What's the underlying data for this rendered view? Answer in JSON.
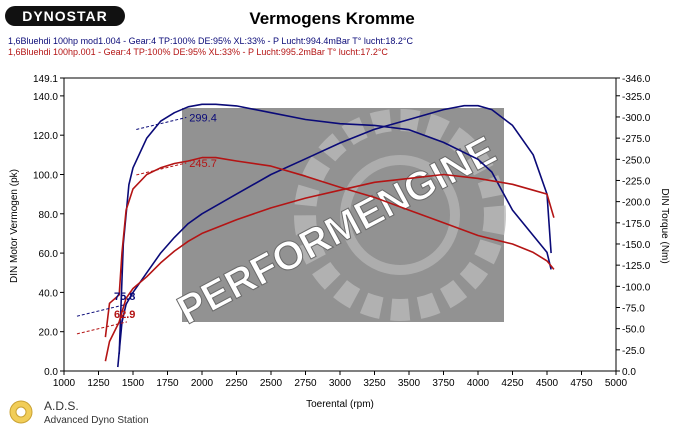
{
  "header": {
    "logo_text": "DYNOSTAR",
    "title": "Vermogens Kromme",
    "run_lines": [
      {
        "text": "1,6Bluehdi 100hp mod1.004 - Gear:4 TP:100% DE:95% XL:33%   - P Lucht:994.4mBar T° lucht:18.2°C",
        "color": "#0a0a78"
      },
      {
        "text": "1,6Bluehdi 100hp.001 - Gear:4 TP:100% DE:95% XL:33%   - P Lucht:995.2mBar T° lucht:17.2°C",
        "color": "#b41414"
      }
    ]
  },
  "footer": {
    "brand": "A.D.S.",
    "subtitle": "Advanced Dyno Station"
  },
  "watermark": {
    "text": "PERFORMENGINE"
  },
  "chart_data": {
    "type": "line",
    "title": "Vermogens Kromme",
    "xlabel": "Toerental (rpm)",
    "ylabel_left": "DIN Motor Vermogen (pk)",
    "ylabel_right": "DIN Torque (Nm)",
    "xlim": [
      1000,
      5000
    ],
    "ylim_left": [
      0,
      149.1
    ],
    "ylim_right": [
      0,
      -346
    ],
    "x_ticks": [
      "1000",
      "1250",
      "1500",
      "1750",
      "2000",
      "2250",
      "2500",
      "2750",
      "3000",
      "3250",
      "3500",
      "3750",
      "4000",
      "4250",
      "4500",
      "4750",
      "5000"
    ],
    "y_left_ticks": [
      "0.0",
      "20.0",
      "40.0",
      "60.0",
      "80.0",
      "100.0",
      "120.0",
      "140.0",
      "149.1"
    ],
    "y_right_ticks": [
      "0.0",
      "-25.0",
      "-50.0",
      "-75.0",
      "-100.0",
      "-125.0",
      "-150.0",
      "-175.0",
      "-200.0",
      "-225.0",
      "-250.0",
      "-275.0",
      "-300.0",
      "-325.0",
      "-346.0"
    ],
    "grid": false,
    "series": [
      {
        "name": "1,6Bluehdi 100hp mod1.004",
        "measure": "power",
        "axis": "left",
        "color": "#0a0a78",
        "x": [
          1390,
          1420,
          1450,
          1500,
          1600,
          1700,
          1800,
          1900,
          2000,
          2250,
          2500,
          2750,
          3000,
          3250,
          3500,
          3750,
          3900,
          4000,
          4100,
          4250,
          4400,
          4500,
          4530
        ],
        "y": [
          2,
          25,
          34,
          40,
          50,
          60,
          68,
          75,
          80,
          90,
          100,
          108,
          116,
          123,
          128,
          133,
          135,
          135,
          133,
          125,
          110,
          90,
          60
        ]
      },
      {
        "name": "1,6Bluehdi 100hp mod1.004",
        "measure": "torque",
        "axis": "right",
        "color": "#0a0a78",
        "x": [
          1400,
          1430,
          1470,
          1500,
          1600,
          1700,
          1800,
          1900,
          2000,
          2100,
          2250,
          2500,
          2750,
          3000,
          3250,
          3500,
          3750,
          4000,
          4100,
          4250,
          4400,
          4500,
          4530
        ],
        "y": [
          -20,
          -150,
          -220,
          -240,
          -275,
          -295,
          -305,
          -312,
          -315,
          -315,
          -313,
          -305,
          -297,
          -292,
          -290,
          -285,
          -270,
          -250,
          -235,
          -190,
          -160,
          -140,
          -120
        ]
      },
      {
        "name": "1,6Bluehdi 100hp.001",
        "measure": "power",
        "axis": "left",
        "color": "#b41414",
        "x": [
          1300,
          1330,
          1400,
          1420,
          1450,
          1500,
          1600,
          1700,
          1800,
          1900,
          2000,
          2250,
          2500,
          2750,
          3000,
          3250,
          3500,
          3750,
          4000,
          4250,
          4400,
          4500,
          4550
        ],
        "y": [
          5,
          15,
          25,
          30,
          37,
          42,
          48,
          55,
          61,
          66,
          70,
          77,
          83,
          88,
          92,
          96,
          98,
          100,
          98,
          95,
          92,
          90,
          78
        ]
      },
      {
        "name": "1,6Bluehdi 100hp.001",
        "measure": "torque",
        "axis": "right",
        "color": "#b41414",
        "x": [
          1300,
          1330,
          1400,
          1420,
          1450,
          1500,
          1600,
          1700,
          1800,
          1900,
          2000,
          2100,
          2250,
          2500,
          2750,
          3000,
          3250,
          3500,
          3750,
          4000,
          4250,
          4400,
          4500,
          4550
        ],
        "y": [
          -40,
          -80,
          -90,
          -140,
          -190,
          -215,
          -232,
          -240,
          -245,
          -248,
          -252,
          -252,
          -248,
          -242,
          -230,
          -217,
          -205,
          -190,
          -175,
          -160,
          -150,
          -140,
          -130,
          -120
        ]
      }
    ],
    "annotations": [
      {
        "text": "299.4",
        "color": "#0a0a78",
        "x": 1850,
        "y_right": -299.4
      },
      {
        "text": "245.7",
        "color": "#b41414",
        "x": 1850,
        "y_right": -245.7
      },
      {
        "text": "75.8",
        "color": "#0a0a78",
        "x": 1420,
        "y_left": 34
      },
      {
        "text": "62.9",
        "color": "#b41414",
        "x": 1420,
        "y_left": 25
      }
    ]
  }
}
